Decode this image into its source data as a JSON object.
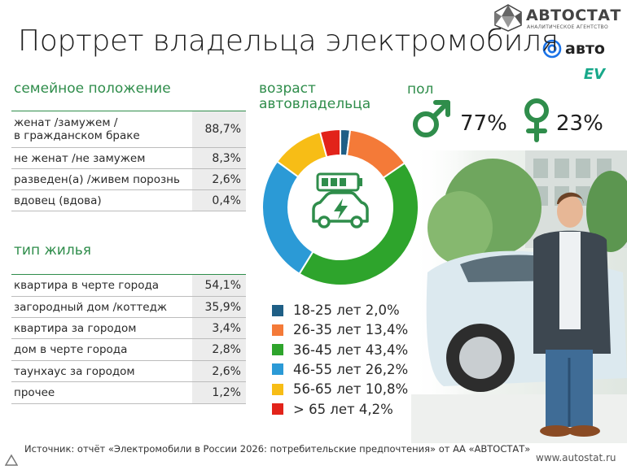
{
  "title": "Портрет владельца электромобиля",
  "logo": {
    "name": "АВТОСТАТ",
    "subtitle": "АНАЛИТИЧЕСКОЕ АГЕНТСТВО",
    "auto_mail": "авто",
    "partner": "EV"
  },
  "family": {
    "heading": "семейное положение",
    "rows": [
      {
        "label": "женат /замужем /\nв гражданском браке",
        "value": "88,7%"
      },
      {
        "label": "не женат /не замужем",
        "value": "8,3%"
      },
      {
        "label": "разведен(а) /живем порознь",
        "value": "2,6%"
      },
      {
        "label": "вдовец (вдова)",
        "value": "0,4%"
      }
    ]
  },
  "housing": {
    "heading": "тип жилья",
    "rows": [
      {
        "label": "квартира в черте города",
        "value": "54,1%"
      },
      {
        "label": "загородный дом /коттедж",
        "value": "35,9%"
      },
      {
        "label": "квартира за городом",
        "value": "3,4%"
      },
      {
        "label": "дом в черте города",
        "value": "2,8%"
      },
      {
        "label": "таунхаус за городом",
        "value": "2,6%"
      },
      {
        "label": "прочее",
        "value": "1,2%"
      }
    ]
  },
  "age_heading": "возраст\nавтовладельца",
  "gender": {
    "heading": "пол",
    "male_pct": "77%",
    "female_pct": "23%"
  },
  "chart_data": {
    "type": "pie",
    "variant": "donut",
    "categories": [
      "18-25 лет",
      "26-35 лет",
      "36-45 лет",
      "46-55 лет",
      "56-65 лет",
      "> 65 лет"
    ],
    "values": [
      2.0,
      13.4,
      43.4,
      26.2,
      10.8,
      4.2
    ],
    "value_labels": [
      "2,0%",
      "13,4%",
      "43,4%",
      "26,2%",
      "10,8%",
      "4,2%"
    ],
    "colors": [
      "#1f5f86",
      "#f47a38",
      "#2ea42c",
      "#2b9ad6",
      "#f7bd16",
      "#e2231a"
    ],
    "legend_placement": "bottom"
  },
  "footer": {
    "source": "Источник: отчёт «Электромобили в России 2026: потребительские предпочтения» от АА «АВТОСТАТ»",
    "url": "www.autostat.ru"
  },
  "colors": {
    "accent_green": "#2f8d4b",
    "text": "#222222",
    "value_bg": "#ececec"
  }
}
